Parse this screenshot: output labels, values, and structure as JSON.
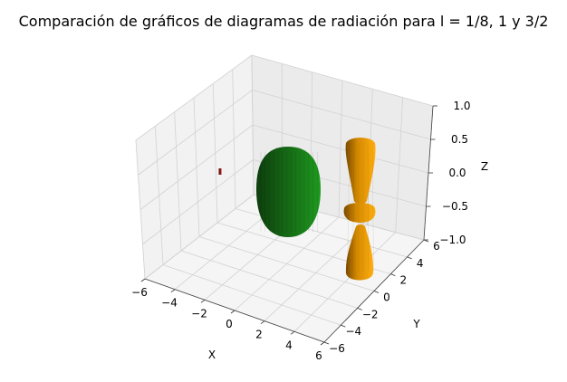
{
  "chart_data": {
    "type": "surface3d",
    "title": "Comparación de gráficos de diagramas de radiación para l = 1/8, 1 y 3/2",
    "xlabel": "X",
    "ylabel": "Y",
    "zlabel": "Z",
    "xlim": [
      -6,
      6
    ],
    "ylim": [
      -6,
      6
    ],
    "zlim": [
      -1,
      1
    ],
    "x_ticks": [
      -6,
      -4,
      -2,
      0,
      2,
      4,
      6
    ],
    "y_ticks": [
      -6,
      -4,
      -2,
      0,
      2,
      4,
      6
    ],
    "z_ticks": [
      -1.0,
      -0.5,
      0.0,
      0.5,
      1.0
    ],
    "x_tick_labels": [
      "−6",
      "−4",
      "−2",
      "0",
      "2",
      "4",
      "6"
    ],
    "y_tick_labels": [
      "−6",
      "−4",
      "−2",
      "0",
      "2",
      "4",
      "6"
    ],
    "z_tick_labels": [
      "−1.0",
      "−0.5",
      "0.0",
      "0.5",
      "1.0"
    ],
    "grid": true,
    "series": [
      {
        "l": "1/8",
        "color": "#8b1a1a",
        "center": [
          -3,
          0,
          0
        ],
        "shape": "tiny"
      },
      {
        "l": "1",
        "color": "#1f8a1f",
        "center": [
          0,
          0,
          0
        ],
        "shape": "barrel"
      },
      {
        "l": "3/2",
        "color": "#f5a000",
        "center": [
          3,
          0,
          0
        ],
        "shape": "lobed"
      }
    ]
  }
}
